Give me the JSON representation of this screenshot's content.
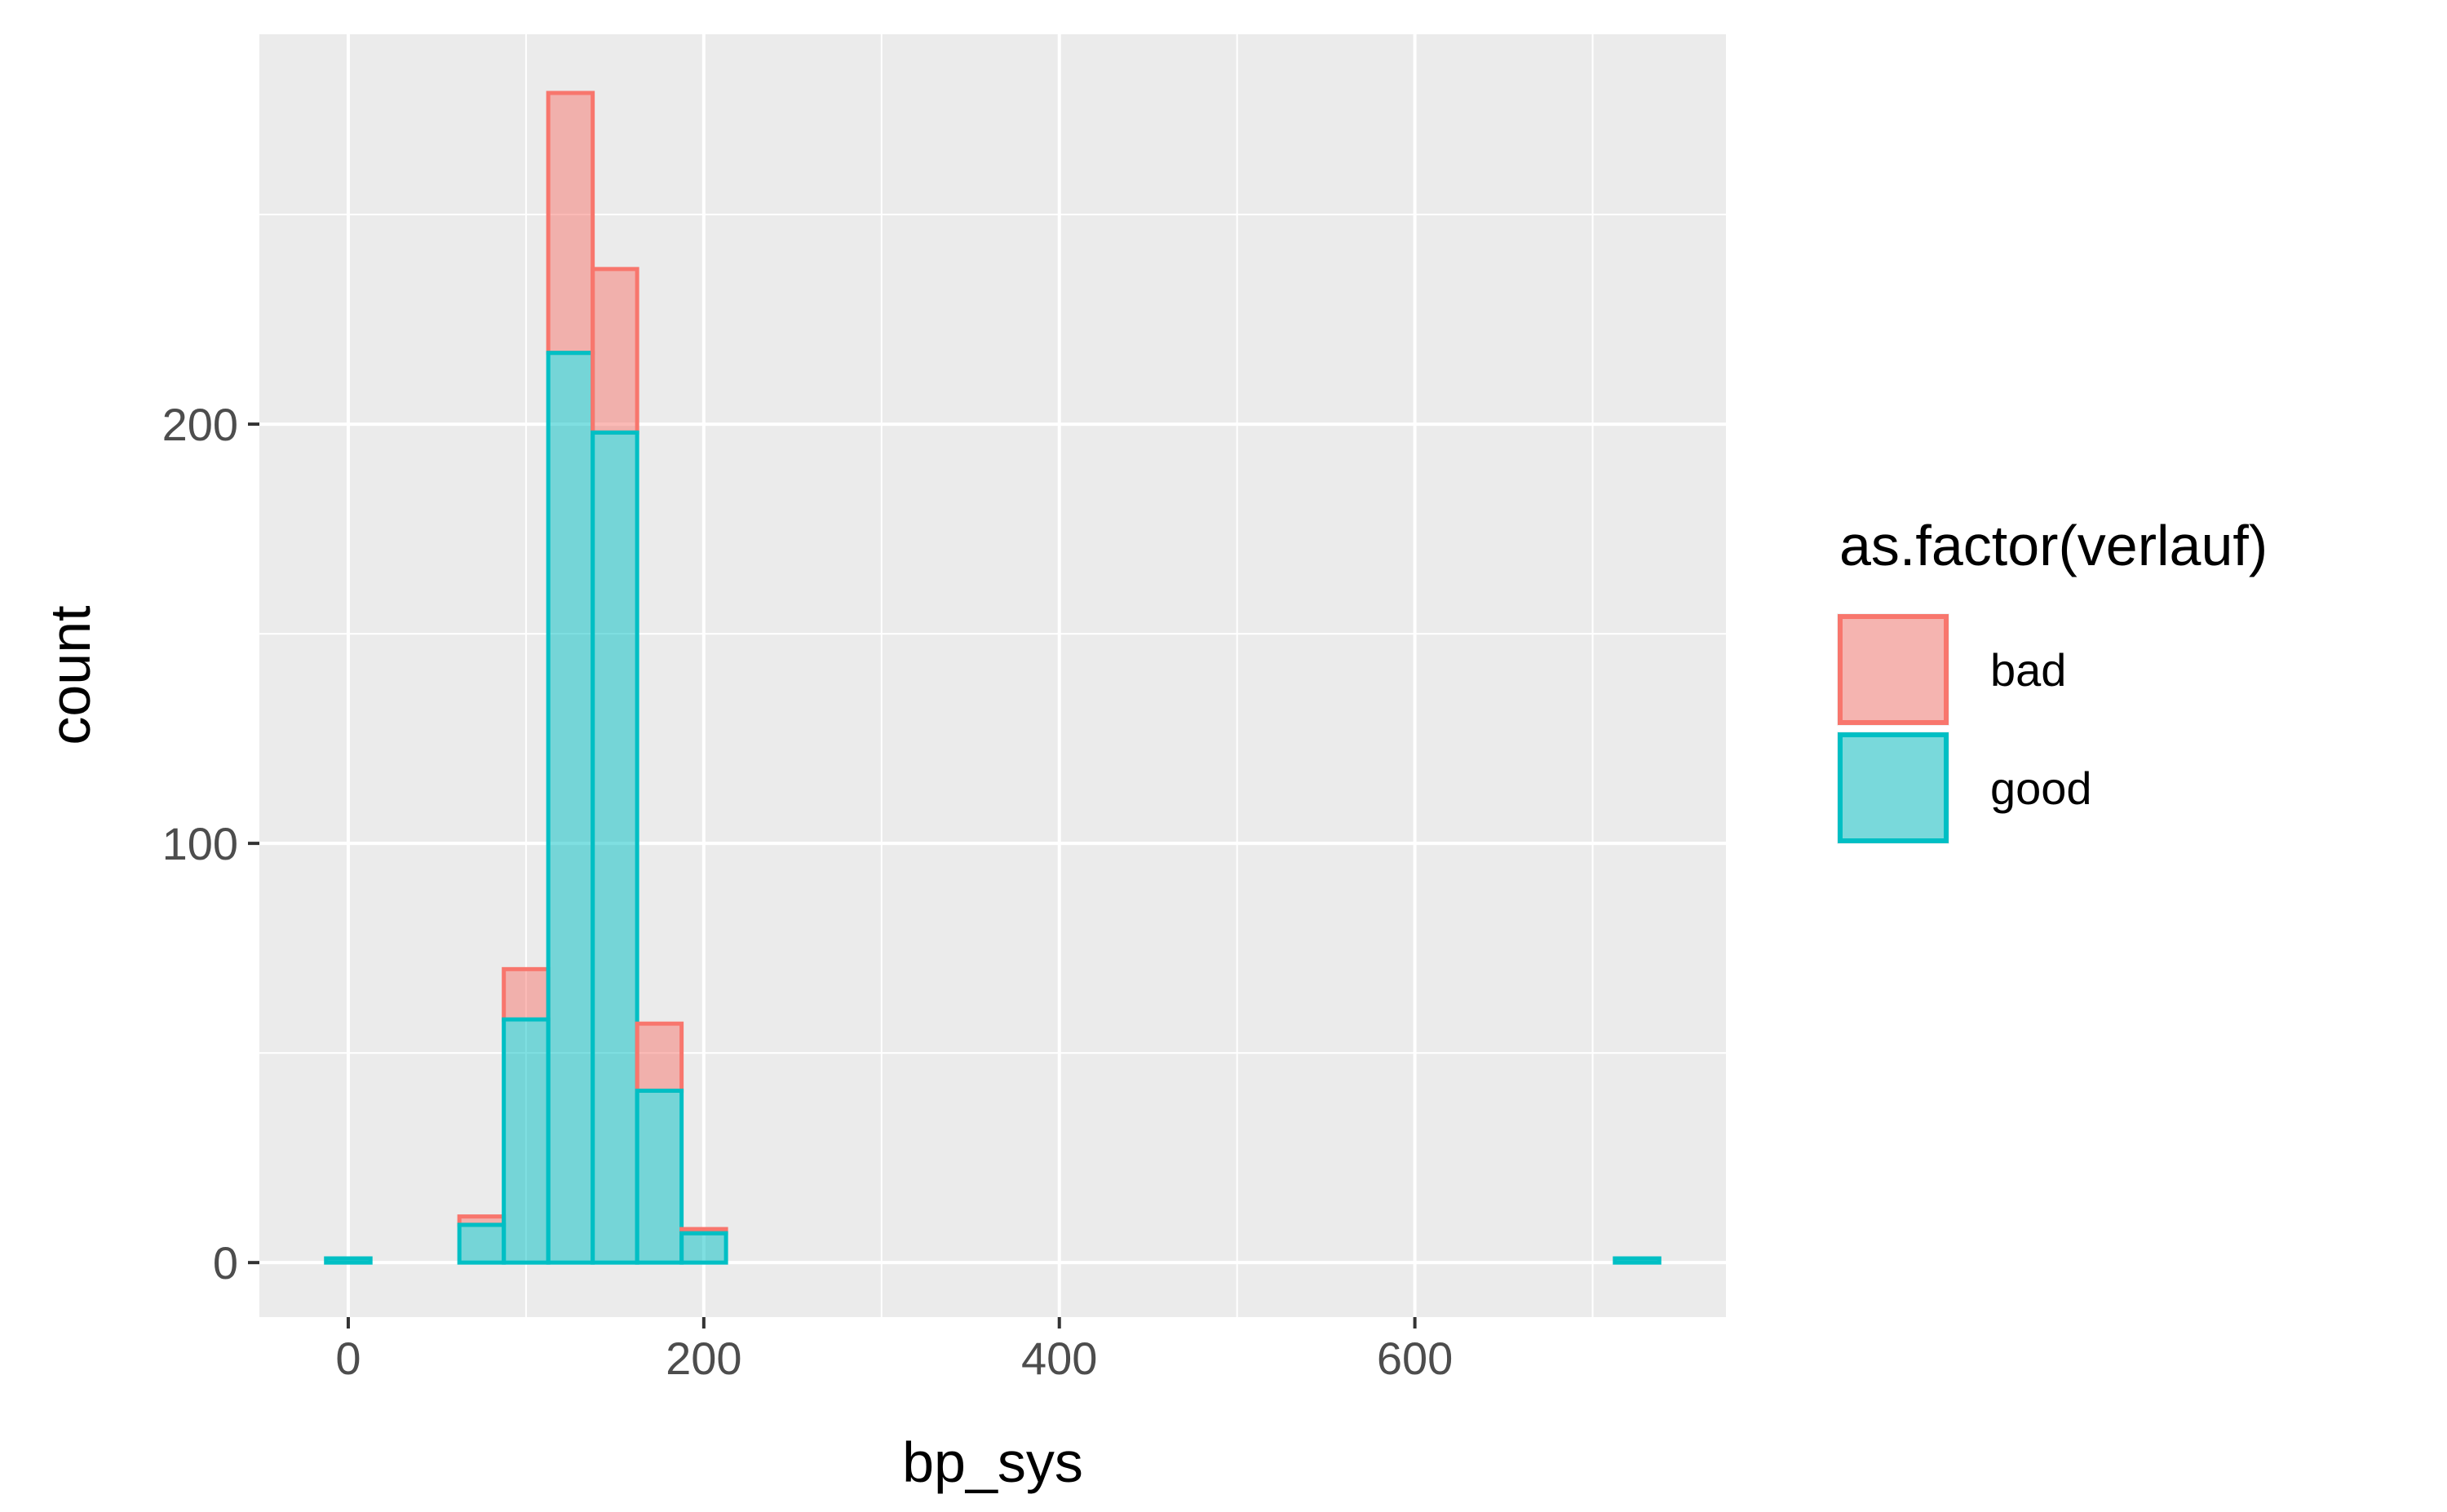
{
  "chart_data": {
    "type": "bar",
    "stacked": true,
    "title": "",
    "xlabel": "bp_sys",
    "ylabel": "count",
    "x_ticks": [
      0,
      200,
      400,
      600
    ],
    "y_ticks": [
      0,
      100,
      200
    ],
    "xlim": [
      -50,
      775
    ],
    "ylim": [
      -13,
      293
    ],
    "grid": true,
    "legend_position": "right",
    "legend_title": "as.factor(verlauf)",
    "bin_width": 25,
    "bin_centers": [
      0,
      25,
      50,
      75,
      100,
      125,
      150,
      175,
      200,
      225,
      250,
      275,
      300,
      325,
      350,
      375,
      400,
      425,
      450,
      475,
      500,
      525,
      550,
      575,
      600,
      625,
      650,
      675,
      700,
      725
    ],
    "series": [
      {
        "name": "bad",
        "fill": "#F8766D",
        "values": [
          0,
          0,
          0,
          2,
          12,
          62,
          39,
          16,
          1,
          0,
          0,
          0,
          0,
          0,
          0,
          0,
          0,
          0,
          0,
          0,
          0,
          0,
          0,
          0,
          0,
          0,
          0,
          0,
          0,
          0
        ]
      },
      {
        "name": "good",
        "fill": "#00BFC4",
        "values": [
          1,
          0,
          0,
          9,
          58,
          217,
          198,
          41,
          7,
          0,
          0,
          0,
          0,
          0,
          0,
          0,
          0,
          0,
          0,
          0,
          0,
          0,
          0,
          0,
          0,
          0,
          0,
          0,
          0,
          1
        ]
      }
    ]
  }
}
